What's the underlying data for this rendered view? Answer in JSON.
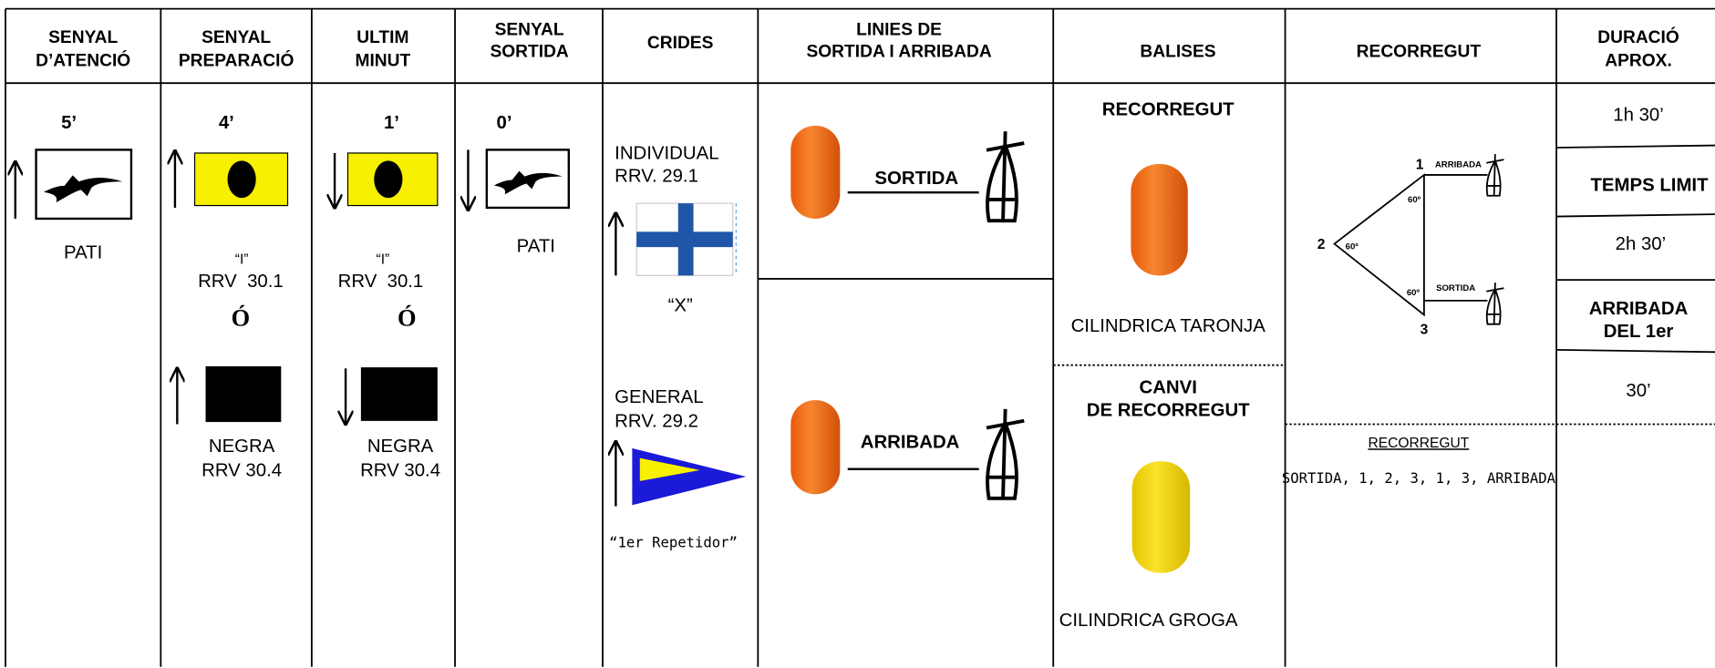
{
  "header": {
    "columns": [
      [
        "SENYAL",
        "D’ATENCIÓ"
      ],
      [
        "SENYAL",
        "PREPARACIÓ"
      ],
      [
        "ULTIM",
        "MINUT"
      ],
      [
        "SENYAL",
        "SORTIDA"
      ],
      [
        "CRIDES"
      ],
      [
        "LINIES DE",
        "SORTIDA I ARRIBADA"
      ],
      [
        "BALISES"
      ],
      [
        "RECORREGUT"
      ],
      [
        "DURACIÓ",
        "APROX."
      ]
    ]
  },
  "warning": {
    "time": "5’",
    "flag": "PATI"
  },
  "preparatory": {
    "time": "4’",
    "flag_i": "“I”",
    "rule_i": "RRV  30.1",
    "or": "Ó",
    "flag_black": "NEGRA",
    "rule_black": "RRV 30.4"
  },
  "one_minute": {
    "time": "1’",
    "flag_i": "“I”",
    "rule_i": "RRV  30.1",
    "or": "Ó",
    "flag_black": "NEGRA",
    "rule_black": "RRV 30.4"
  },
  "start": {
    "time": "0’",
    "flag": "PATI"
  },
  "recalls": {
    "individual": "INDIVIDUAL",
    "individual_rule": "RRV. 29.1",
    "individual_flag": "“X”",
    "general": "GENERAL",
    "general_rule": "RRV. 29.2",
    "general_flag": "“1er Repetidor”"
  },
  "lines": {
    "start": "SORTIDA",
    "finish": "ARRIBADA"
  },
  "marks": {
    "course_title": "RECORREGUT",
    "course_mark": "CILINDRICA TARONJA",
    "change_title": [
      "CANVI",
      "DE RECORREGUT"
    ],
    "change_mark": "CILINDRICA GROGA"
  },
  "course": {
    "nodes": [
      "1",
      "2",
      "3"
    ],
    "finish": "ARRIBADA",
    "start": "SORTIDA",
    "angle": "60º",
    "title": "RECORREGUT",
    "sequence": "SORTIDA, 1, 2, 3, 1, 3, ARRIBADA"
  },
  "duration": {
    "approx": "1h 30’",
    "time_limit_title": "TEMPS LIMIT",
    "time_limit": "2h 30’",
    "first_finish_title": [
      "ARRIBADA",
      "DEL 1er"
    ],
    "first_finish": "30’"
  }
}
